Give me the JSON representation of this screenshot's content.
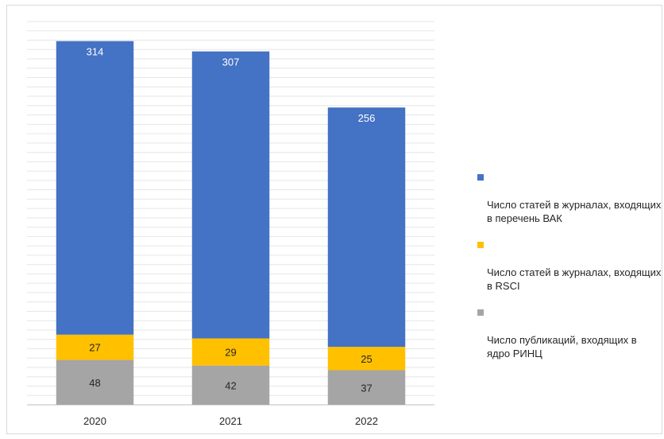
{
  "chart_data": {
    "type": "bar",
    "stacked": true,
    "categories": [
      "2020",
      "2021",
      "2022"
    ],
    "series": [
      {
        "name": "Число публикаций, входящих в ядро РИНЦ",
        "values": [
          48,
          42,
          37
        ],
        "color": "#A5A5A5",
        "label_color": "#262626"
      },
      {
        "name": "Число статей в журналах, входящих в RSCI",
        "values": [
          27,
          29,
          25
        ],
        "color": "#FFC000",
        "label_color": "#262626"
      },
      {
        "name": "Число статей в журналах, входящих в перечень ВАК",
        "values": [
          314,
          307,
          256
        ],
        "color": "#4472C4",
        "label_color": "#FFFFFF"
      }
    ],
    "legend_order": [
      2,
      1,
      0
    ],
    "legend_display": [
      "Число статей в журналах, входящих\nв перечень ВАК",
      "Число статей в журналах, входящих\nв RSCI",
      "Число публикаций, входящих в\nядро РИНЦ"
    ],
    "grid": true,
    "legend_position": "right",
    "title": "",
    "xlabel": "",
    "ylabel": ""
  }
}
